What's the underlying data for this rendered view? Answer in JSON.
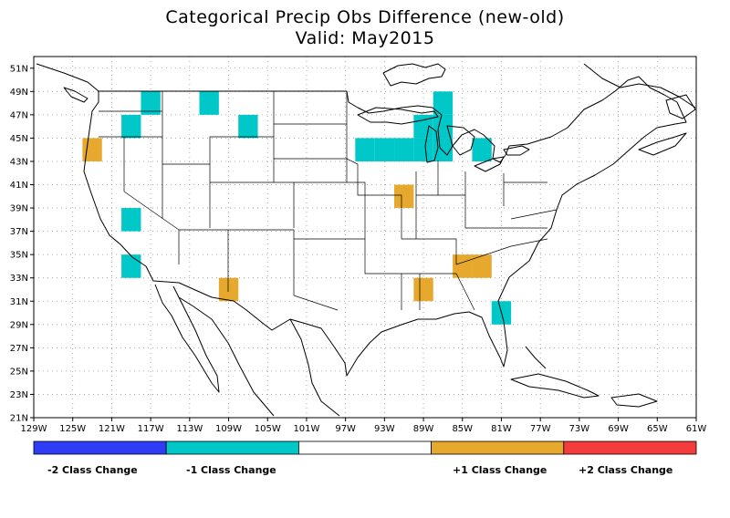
{
  "title": "Categorical Precip Obs Difference (new-old)",
  "subtitle": "Valid: May2015",
  "chart_data": {
    "type": "heatmap",
    "lon_range": [
      -129,
      -61
    ],
    "lat_range": [
      21,
      52
    ],
    "x_ticks": [
      "129W",
      "125W",
      "121W",
      "117W",
      "113W",
      "109W",
      "105W",
      "101W",
      "97W",
      "93W",
      "89W",
      "85W",
      "81W",
      "77W",
      "73W",
      "69W",
      "65W",
      "61W"
    ],
    "y_ticks": [
      "21N",
      "23N",
      "25N",
      "27N",
      "29N",
      "31N",
      "33N",
      "35N",
      "37N",
      "39N",
      "41N",
      "43N",
      "45N",
      "47N",
      "49N",
      "51N"
    ],
    "grid": true,
    "legend": {
      "placement": "bottom",
      "colors": [
        "#2e3cf5",
        "#00c8c8",
        "#ffffff",
        "#e6a82d",
        "#f53c3c"
      ],
      "labels": [
        "-2 Class Change",
        "-1 Class Change",
        "",
        "+1 Class Change",
        "+2 Class Change"
      ]
    },
    "cells": [
      {
        "lon": -117,
        "lat": 48,
        "value": -1
      },
      {
        "lon": -111,
        "lat": 48,
        "value": -1
      },
      {
        "lon": -119,
        "lat": 46,
        "value": -1
      },
      {
        "lon": -107,
        "lat": 46,
        "value": -1
      },
      {
        "lon": -123,
        "lat": 44,
        "value": 1
      },
      {
        "lon": -119,
        "lat": 38,
        "value": -1
      },
      {
        "lon": -119,
        "lat": 34,
        "value": -1
      },
      {
        "lon": -109,
        "lat": 32,
        "value": 1
      },
      {
        "lon": -95,
        "lat": 44,
        "value": -1
      },
      {
        "lon": -93,
        "lat": 44,
        "value": -1
      },
      {
        "lon": -91,
        "lat": 44,
        "value": -1
      },
      {
        "lon": -89,
        "lat": 46,
        "value": -1
      },
      {
        "lon": -87,
        "lat": 46,
        "value": -1
      },
      {
        "lon": -89,
        "lat": 44,
        "value": -1
      },
      {
        "lon": -87,
        "lat": 48,
        "value": -1
      },
      {
        "lon": -87,
        "lat": 44,
        "value": -1
      },
      {
        "lon": -83,
        "lat": 44,
        "value": -1
      },
      {
        "lon": -91,
        "lat": 40,
        "value": 1
      },
      {
        "lon": -85,
        "lat": 34,
        "value": 1
      },
      {
        "lon": -83,
        "lat": 34,
        "value": 1
      },
      {
        "lon": -89,
        "lat": 32,
        "value": 1
      },
      {
        "lon": -81,
        "lat": 30,
        "value": -1
      }
    ]
  }
}
